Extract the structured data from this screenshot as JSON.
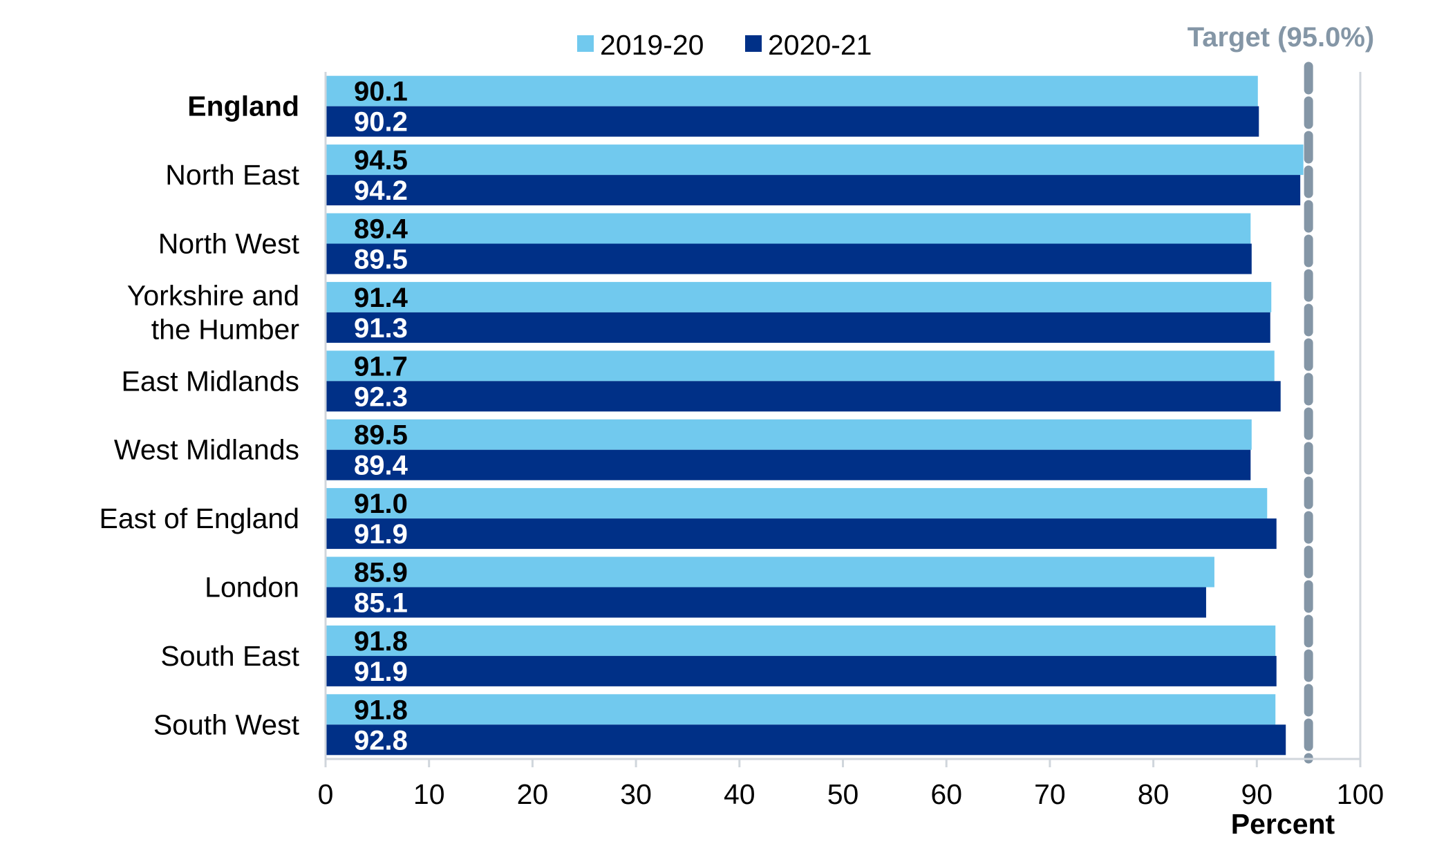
{
  "chart_data": {
    "type": "bar",
    "orientation": "horizontal",
    "categories": [
      "England",
      "North East",
      "North West",
      "Yorkshire and the Humber",
      "East Midlands",
      "West Midlands",
      "East of England",
      "London",
      "South East",
      "South West"
    ],
    "category_lines": [
      [
        "England"
      ],
      [
        "North East"
      ],
      [
        "North West"
      ],
      [
        "Yorkshire and",
        "the Humber"
      ],
      [
        "East Midlands"
      ],
      [
        "West Midlands"
      ],
      [
        "East of England"
      ],
      [
        "London"
      ],
      [
        "South East"
      ],
      [
        "South West"
      ]
    ],
    "bold_category": "England",
    "series": [
      {
        "name": "2019-20",
        "color": "#71c9ee",
        "label_color": "#000000",
        "values": [
          90.1,
          94.5,
          89.4,
          91.4,
          91.7,
          89.5,
          91.0,
          85.9,
          91.8,
          91.8
        ]
      },
      {
        "name": "2020-21",
        "color": "#003087",
        "label_color": "#ffffff",
        "values": [
          90.2,
          94.2,
          89.5,
          91.3,
          92.3,
          89.4,
          91.9,
          85.1,
          91.9,
          92.8
        ]
      }
    ],
    "value_labels": [
      [
        "90.1",
        "94.5",
        "89.4",
        "91.4",
        "91.7",
        "89.5",
        "91.0",
        "85.9",
        "91.8",
        "91.8"
      ],
      [
        "90.2",
        "94.2",
        "89.5",
        "91.3",
        "92.3",
        "89.4",
        "91.9",
        "85.1",
        "91.9",
        "92.8"
      ]
    ],
    "xlim": [
      0,
      100
    ],
    "xticks": [
      0,
      10,
      20,
      30,
      40,
      50,
      60,
      70,
      80,
      90,
      100
    ],
    "xlabel": "Percent",
    "target": {
      "value": 95.0,
      "label": "Target (95.0%)",
      "color": "#8496a6"
    },
    "gridline_value": 100,
    "grid_color": "#d0d6dc",
    "legend_position": "top"
  }
}
